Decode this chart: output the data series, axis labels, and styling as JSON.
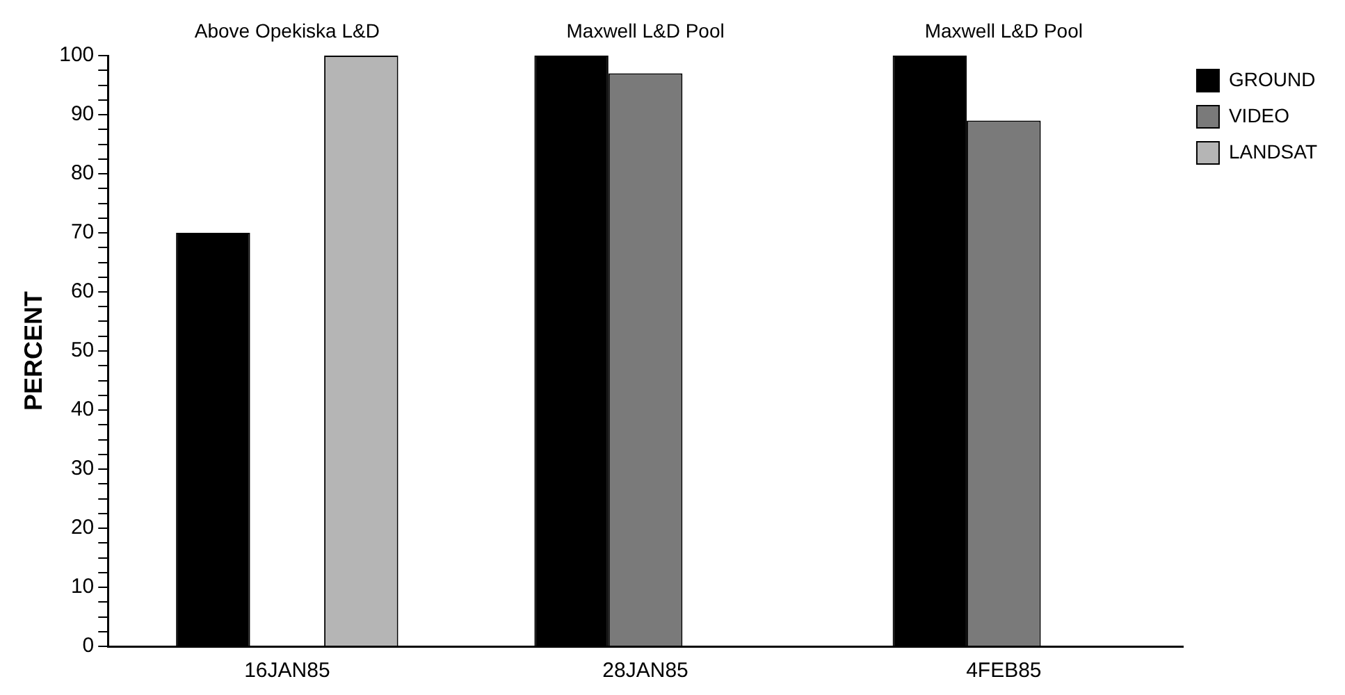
{
  "chart_data": {
    "type": "bar",
    "ylabel": "PERCENT",
    "categories": [
      "16JAN85",
      "28JAN85",
      "4FEB85"
    ],
    "series": [
      {
        "name": "GROUND",
        "color": "#000000",
        "values": [
          70,
          100,
          100
        ]
      },
      {
        "name": "VIDEO",
        "color": "#7a7a7a",
        "values": [
          null,
          97,
          89
        ]
      },
      {
        "name": "LANDSAT",
        "color": "#b5b5b5",
        "values": [
          100,
          null,
          null
        ]
      }
    ],
    "ylim": [
      0,
      100
    ],
    "yticks": [
      0,
      {
        "value": 2.5,
        "label": null
      },
      {
        "value": 5,
        "label": null
      },
      {
        "value": 7.5,
        "label": null
      },
      10,
      {
        "value": 12.5,
        "label": null
      },
      {
        "value": 15,
        "label": null
      },
      {
        "value": 17.5,
        "label": null
      },
      20,
      {
        "value": 22.5,
        "label": null
      },
      {
        "value": 25,
        "label": null
      },
      {
        "value": 27.5,
        "label": null
      },
      30,
      {
        "value": 32.5,
        "label": null
      },
      {
        "value": 35,
        "label": null
      },
      {
        "value": 37.5,
        "label": null
      },
      40,
      {
        "value": 42.5,
        "label": null
      },
      {
        "value": 45,
        "label": null
      },
      {
        "value": 47.5,
        "label": null
      },
      50,
      {
        "value": 52.5,
        "label": null
      },
      {
        "value": 55,
        "label": null
      },
      {
        "value": 57.5,
        "label": null
      },
      60,
      {
        "value": 62.5,
        "label": null
      },
      {
        "value": 65,
        "label": null
      },
      {
        "value": 67.5,
        "label": null
      },
      70,
      {
        "value": 72.5,
        "label": null
      },
      {
        "value": 75,
        "label": null
      },
      {
        "value": 77.5,
        "label": null
      },
      80,
      {
        "value": 82.5,
        "label": null
      },
      {
        "value": 85,
        "label": null
      },
      {
        "value": 87.5,
        "label": null
      },
      90,
      {
        "value": 92.5,
        "label": null
      },
      {
        "value": 95,
        "label": null
      },
      {
        "value": 97.5,
        "label": null
      },
      100
    ],
    "annotations": [
      "Above Opekiska L&D",
      "Maxwell L&D Pool",
      "Maxwell L&D Pool"
    ],
    "grid": false,
    "legend": "top right"
  }
}
